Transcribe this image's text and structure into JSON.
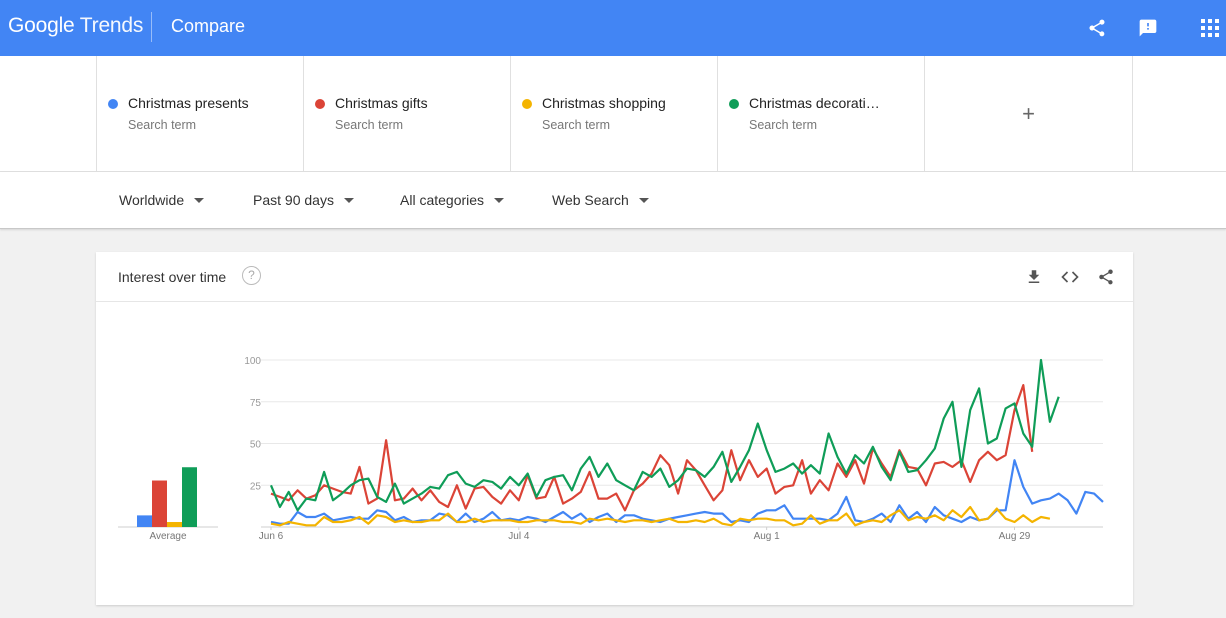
{
  "header": {
    "logo_google": "Google",
    "logo_trends": "Trends",
    "title": "Compare",
    "icons": [
      "share-icon",
      "feedback-icon",
      "apps-grid-icon"
    ]
  },
  "terms": [
    {
      "name": "Christmas presents",
      "sub": "Search term",
      "color": "#4285f4"
    },
    {
      "name": "Christmas gifts",
      "sub": "Search term",
      "color": "#db4437"
    },
    {
      "name": "Christmas shopping",
      "sub": "Search term",
      "color": "#f4b400"
    },
    {
      "name": "Christmas decorati…",
      "sub": "Search term",
      "color": "#0f9d58"
    }
  ],
  "add_term_label": "+",
  "filters": {
    "region": "Worldwide",
    "period": "Past 90 days",
    "category": "All categories",
    "property": "Web Search"
  },
  "card": {
    "title": "Interest over time",
    "help": "?",
    "icons": [
      "download-icon",
      "embed-code-icon",
      "share-icon"
    ]
  },
  "chart_data": {
    "type": "line",
    "ylim": [
      0,
      100
    ],
    "yticks": [
      25,
      50,
      75,
      100
    ],
    "xtick_labels": [
      "Jun 6",
      "Jul 4",
      "Aug 1",
      "Aug 29"
    ],
    "xtick_index": [
      0,
      28,
      56,
      84
    ],
    "average_label": "Average",
    "averages": [
      7,
      28,
      3,
      36
    ],
    "series": [
      {
        "name": "Christmas presents",
        "color": "#4285f4",
        "values": [
          3,
          2,
          2,
          9,
          6,
          6,
          8,
          4,
          5,
          6,
          5,
          5,
          10,
          9,
          4,
          6,
          3,
          4,
          4,
          8,
          7,
          3,
          8,
          3,
          5,
          9,
          4,
          5,
          4,
          6,
          5,
          3,
          6,
          9,
          5,
          8,
          3,
          6,
          8,
          3,
          7,
          7,
          5,
          4,
          3,
          5,
          6,
          7,
          8,
          9,
          8,
          8,
          3,
          4,
          3,
          8,
          10,
          10,
          13,
          5,
          5,
          5,
          5,
          4,
          8,
          18,
          4,
          3,
          5,
          8,
          3,
          13,
          5,
          9,
          3,
          12,
          7,
          5,
          3,
          6,
          4,
          5,
          10,
          10,
          40,
          24,
          14,
          16,
          17,
          20,
          16,
          8,
          21,
          20,
          15
        ]
      },
      {
        "name": "Christmas gifts",
        "color": "#db4437",
        "values": [
          20,
          18,
          16,
          22,
          17,
          19,
          25,
          23,
          21,
          20,
          36,
          14,
          17,
          52,
          16,
          17,
          23,
          16,
          22,
          15,
          12,
          25,
          11,
          23,
          24,
          18,
          14,
          22,
          16,
          31,
          17,
          18,
          30,
          14,
          17,
          21,
          33,
          17,
          17,
          20,
          10,
          22,
          26,
          32,
          43,
          37,
          20,
          40,
          34,
          25,
          16,
          22,
          46,
          28,
          40,
          30,
          35,
          20,
          24,
          25,
          40,
          20,
          28,
          22,
          38,
          30,
          40,
          26,
          47,
          38,
          30,
          46,
          36,
          35,
          25,
          38,
          39,
          36,
          40,
          27,
          40,
          45,
          40,
          43,
          70,
          85,
          45
        ]
      },
      {
        "name": "Christmas shopping",
        "color": "#f4b400",
        "values": [
          2,
          1,
          3,
          2,
          1,
          1,
          6,
          3,
          3,
          4,
          6,
          2,
          7,
          6,
          3,
          4,
          3,
          3,
          4,
          4,
          8,
          3,
          3,
          5,
          3,
          4,
          4,
          4,
          3,
          3,
          4,
          4,
          4,
          3,
          3,
          2,
          5,
          4,
          5,
          4,
          3,
          4,
          4,
          3,
          4,
          5,
          3,
          3,
          4,
          3,
          5,
          2,
          1,
          5,
          4,
          5,
          5,
          4,
          4,
          1,
          2,
          7,
          2,
          4,
          4,
          8,
          1,
          3,
          4,
          3,
          7,
          10,
          4,
          6,
          5,
          7,
          4,
          10,
          6,
          12,
          4,
          5,
          11,
          5,
          3,
          7,
          3,
          6,
          5
        ]
      },
      {
        "name": "Christmas decorati…",
        "color": "#0f9d58",
        "values": [
          25,
          12,
          21,
          10,
          17,
          16,
          33,
          16,
          20,
          25,
          28,
          29,
          18,
          15,
          26,
          14,
          17,
          20,
          24,
          23,
          31,
          33,
          26,
          24,
          28,
          27,
          23,
          30,
          25,
          32,
          18,
          28,
          30,
          31,
          22,
          35,
          42,
          30,
          38,
          28,
          25,
          22,
          33,
          30,
          35,
          24,
          28,
          35,
          34,
          30,
          36,
          45,
          27,
          36,
          46,
          62,
          46,
          33,
          35,
          38,
          32,
          37,
          32,
          56,
          42,
          32,
          43,
          38,
          48,
          36,
          28,
          45,
          33,
          34,
          40,
          47,
          65,
          75,
          36,
          70,
          83,
          50,
          53,
          71,
          74,
          56,
          48,
          100,
          63,
          78
        ]
      }
    ]
  }
}
